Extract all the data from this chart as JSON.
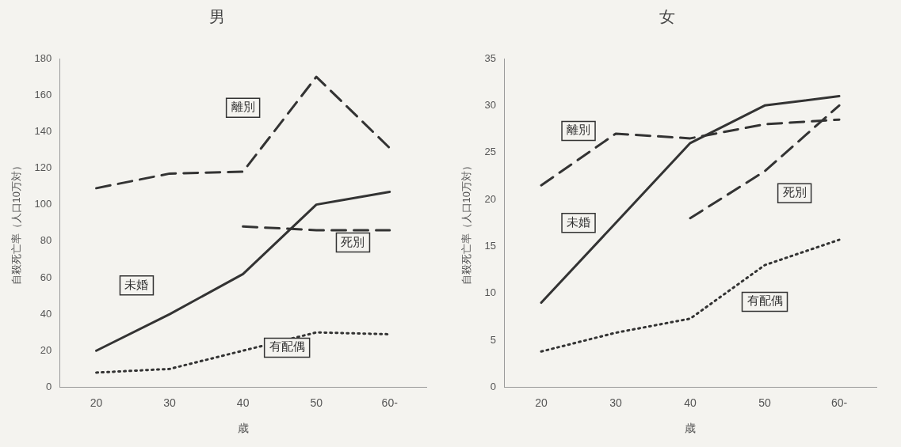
{
  "chart_data": [
    {
      "type": "line",
      "title": "男",
      "xlabel": "歳",
      "ylabel": "自殺死亡率（人口10万対）",
      "categories": [
        "20",
        "30",
        "40",
        "50",
        "60-"
      ],
      "ylim": [
        0,
        180
      ],
      "yticks": [
        0,
        20,
        40,
        60,
        80,
        100,
        120,
        140,
        160,
        180
      ],
      "grid": false,
      "legend": false,
      "marker": "none",
      "series": [
        {
          "name": "未婚",
          "color": "#333333",
          "line_style": "solid",
          "values": [
            20,
            40,
            62,
            100,
            107
          ]
        },
        {
          "name": "離別",
          "color": "#333333",
          "line_style": "dashed",
          "values": [
            109,
            117,
            118,
            170,
            131
          ]
        },
        {
          "name": "死別",
          "color": "#333333",
          "line_style": "dashed",
          "values": [
            null,
            null,
            88,
            86,
            86
          ]
        },
        {
          "name": "有配偶",
          "color": "#333333",
          "line_style": "dotted",
          "values": [
            8,
            10,
            20,
            30,
            29
          ]
        }
      ]
    },
    {
      "type": "line",
      "title": "女",
      "xlabel": "歳",
      "ylabel": "自殺死亡率（人口10万対）",
      "categories": [
        "20",
        "30",
        "40",
        "50",
        "60-"
      ],
      "ylim": [
        0,
        35
      ],
      "yticks": [
        0,
        5,
        10,
        15,
        20,
        25,
        30,
        35
      ],
      "grid": false,
      "legend": false,
      "marker": "none",
      "series": [
        {
          "name": "未婚",
          "color": "#333333",
          "line_style": "solid",
          "values": [
            9,
            17.5,
            26,
            30,
            31
          ]
        },
        {
          "name": "離別",
          "color": "#333333",
          "line_style": "dashed",
          "values": [
            21.5,
            27,
            26.5,
            28,
            28.5
          ]
        },
        {
          "name": "死別",
          "color": "#333333",
          "line_style": "dashed",
          "values": [
            null,
            null,
            18,
            23,
            30
          ]
        },
        {
          "name": "有配偶",
          "color": "#333333",
          "line_style": "dotted",
          "values": [
            3.8,
            5.8,
            7.3,
            13,
            15.7
          ]
        }
      ]
    }
  ]
}
